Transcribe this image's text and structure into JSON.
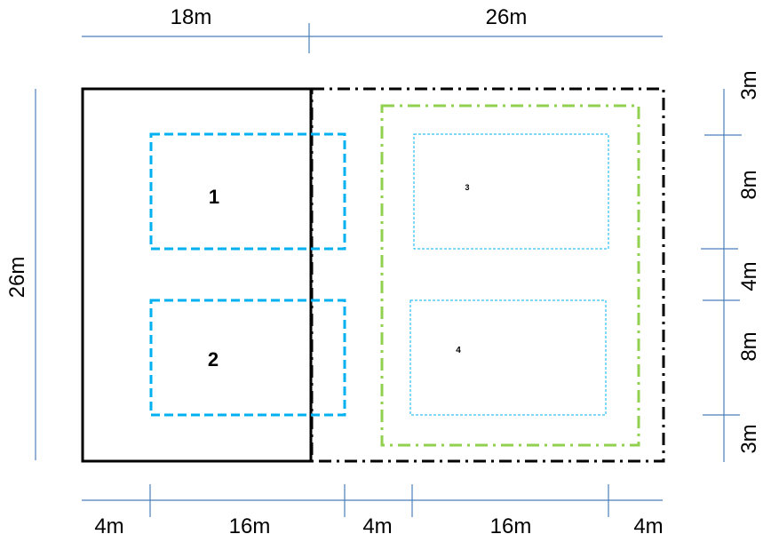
{
  "colors": {
    "dimension_line": "#4a7ebb",
    "outline": "#000000",
    "blue_dashed": "#00b0f0",
    "green_dashdot": "#92d050"
  },
  "top_dimensions": [
    "18m",
    "26m"
  ],
  "left_dimension": "26m",
  "bottom_dimensions": [
    "4m",
    "16m",
    "4m",
    "16m",
    "4m"
  ],
  "right_dimensions": [
    "3m",
    "8m",
    "4m",
    "8m",
    "3m"
  ],
  "zones": [
    {
      "label": "1"
    },
    {
      "label": "2"
    },
    {
      "label": "3"
    },
    {
      "label": "4"
    }
  ]
}
